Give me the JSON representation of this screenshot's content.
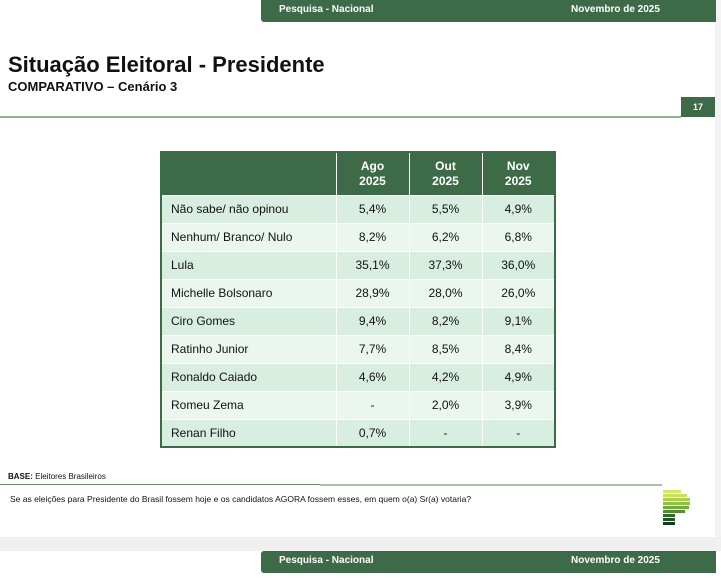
{
  "header": {
    "survey": "Pesquisa - Nacional",
    "date": "Novembro de 2025"
  },
  "title": "Situação Eleitoral - Presidente",
  "subtitle": "COMPARATIVO – Cenário 3",
  "page_number": "17",
  "table": {
    "columns": [
      "Ago\n2025",
      "Out\n2025",
      "Nov\n2025"
    ],
    "rows": [
      {
        "label": "Não sabe/ não opinou",
        "values": [
          "5,4%",
          "5,5%",
          "4,9%"
        ]
      },
      {
        "label": "Nenhum/ Branco/ Nulo",
        "values": [
          "8,2%",
          "6,2%",
          "6,8%"
        ]
      },
      {
        "label": "Lula",
        "values": [
          "35,1%",
          "37,3%",
          "36,0%"
        ]
      },
      {
        "label": "Michelle Bolsonaro",
        "values": [
          "28,9%",
          "28,0%",
          "26,0%"
        ]
      },
      {
        "label": "Ciro Gomes",
        "values": [
          "9,4%",
          "8,2%",
          "9,1%"
        ]
      },
      {
        "label": "Ratinho Junior",
        "values": [
          "7,7%",
          "8,5%",
          "8,4%"
        ]
      },
      {
        "label": "Ronaldo Caiado",
        "values": [
          "4,6%",
          "4,2%",
          "4,9%"
        ]
      },
      {
        "label": "Romeu Zema",
        "values": [
          "-",
          "2,0%",
          "3,9%"
        ]
      },
      {
        "label": "Renan Filho",
        "values": [
          "0,7%",
          "-",
          "-"
        ]
      }
    ]
  },
  "base": {
    "label": "BASE:",
    "value": "Eleitores Brasileiros"
  },
  "question": "Se as eleições para Presidente do Brasil fossem hoje e os candidatos AGORA fossem esses, em quem o(a) Sr(a) votaria?",
  "footer": {
    "survey": "Pesquisa - Nacional",
    "date": "Novembro de 2025"
  },
  "colors": {
    "brand": "#3d6b47",
    "row_a": "#d8eee0",
    "row_b": "#eaf6ee"
  }
}
